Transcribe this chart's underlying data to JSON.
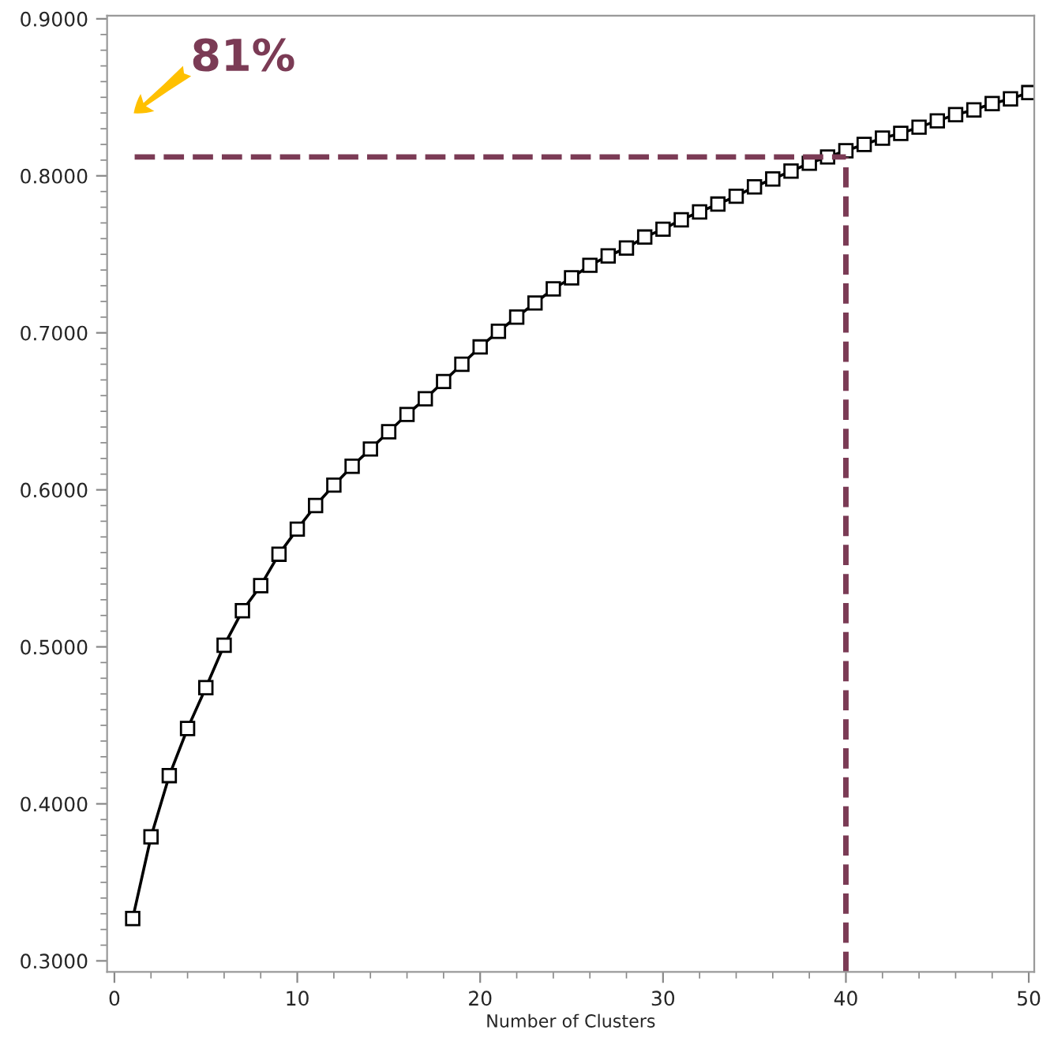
{
  "chart_data": {
    "type": "line",
    "xlabel": "Number of Clusters",
    "x": [
      1,
      2,
      3,
      4,
      5,
      6,
      7,
      8,
      9,
      10,
      11,
      12,
      13,
      14,
      15,
      16,
      17,
      18,
      19,
      20,
      21,
      22,
      23,
      24,
      25,
      26,
      27,
      28,
      29,
      30,
      31,
      32,
      33,
      34,
      35,
      36,
      37,
      38,
      39,
      40,
      41,
      42,
      43,
      44,
      45,
      46,
      47,
      48,
      49,
      50
    ],
    "series": [
      {
        "color": "#000000",
        "values": [
          0.327,
          0.379,
          0.418,
          0.448,
          0.474,
          0.501,
          0.523,
          0.539,
          0.559,
          0.575,
          0.59,
          0.603,
          0.615,
          0.626,
          0.637,
          0.648,
          0.658,
          0.669,
          0.68,
          0.691,
          0.701,
          0.71,
          0.719,
          0.728,
          0.735,
          0.743,
          0.749,
          0.754,
          0.761,
          0.766,
          0.772,
          0.777,
          0.782,
          0.787,
          0.793,
          0.798,
          0.803,
          0.808,
          0.812,
          0.816,
          0.82,
          0.824,
          0.827,
          0.831,
          0.835,
          0.839,
          0.842,
          0.846,
          0.849,
          0.853
        ]
      }
    ],
    "xlim": [
      -0.4,
      50.3
    ],
    "xticks": [
      0,
      10,
      20,
      30,
      40,
      50
    ],
    "ylim": [
      0.293,
      0.902
    ],
    "yticks": [
      {
        "value": 0.3,
        "label": "0.3000"
      },
      {
        "value": 0.4,
        "label": "0.4000"
      },
      {
        "value": 0.5,
        "label": "0.5000"
      },
      {
        "value": 0.6,
        "label": "0.6000"
      },
      {
        "value": 0.7,
        "label": "0.7000"
      },
      {
        "value": 0.8,
        "label": "0.8000"
      },
      {
        "value": 0.9,
        "label": "0.9000"
      }
    ],
    "ref_lines": [
      {
        "axis": "y",
        "value": 0.812,
        "color": "#7b3b55",
        "line_style": "dashed"
      },
      {
        "axis": "x",
        "value": 40,
        "color": "#7b3b55",
        "line_style": "dashed"
      }
    ],
    "annotations": [
      "81%"
    ],
    "marker": "square",
    "line_style": "solid",
    "grid": false,
    "legend": false
  }
}
